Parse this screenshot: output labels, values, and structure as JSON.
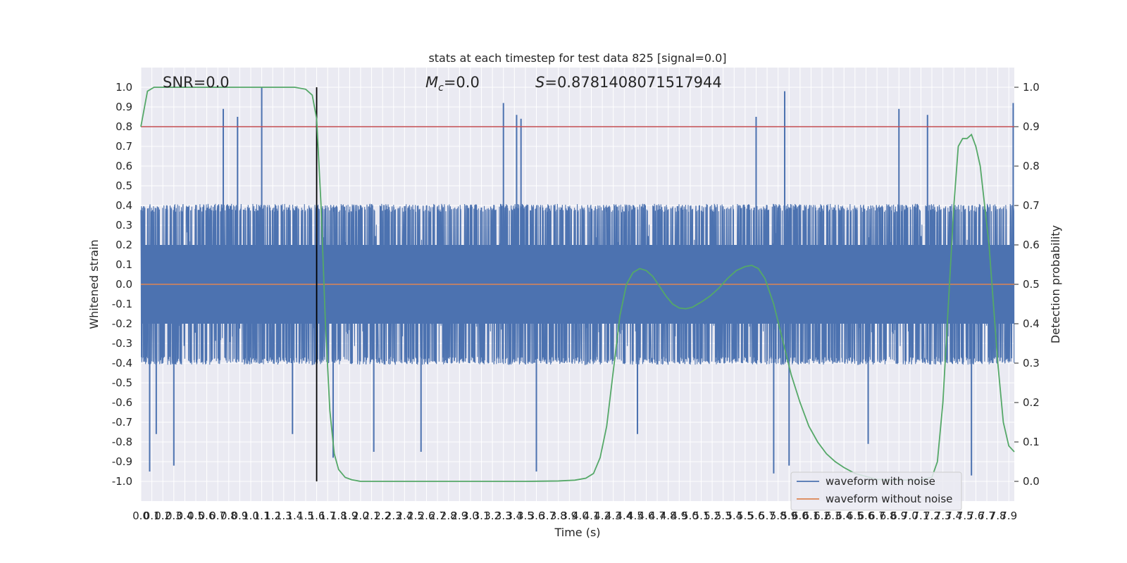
{
  "chart_data": {
    "type": "line",
    "title": "stats at each timestep for test data 825 [signal=0.0]",
    "xlabel": "Time (s)",
    "ylabel": "Whitened strain",
    "ylabel_right": "Detection probability",
    "xlim": [
      0.0,
      7.95
    ],
    "ylim": [
      -1.1,
      1.1
    ],
    "ylim_right": [
      -0.05,
      1.05
    ],
    "grid": true,
    "x_ticks": [
      "0.0",
      "0.1",
      "0.2",
      "0.3",
      "0.4",
      "0.5",
      "0.6",
      "0.7",
      "0.8",
      "0.9",
      "1.0",
      "1.1",
      "1.2",
      "1.3",
      "1.4",
      "1.5",
      "1.6",
      "1.7",
      "1.8",
      "1.9",
      "2.0",
      "2.1",
      "2.2",
      "2.3",
      "2.4",
      "2.5",
      "2.6",
      "2.7",
      "2.8",
      "2.9",
      "3.0",
      "3.1",
      "3.2",
      "3.3",
      "3.4",
      "3.5",
      "3.6",
      "3.7",
      "3.8",
      "3.9",
      "4.0",
      "4.1",
      "4.2",
      "4.3",
      "4.4",
      "4.5",
      "4.6",
      "4.7",
      "4.8",
      "4.9",
      "5.0",
      "5.1",
      "5.2",
      "5.3",
      "5.4",
      "5.5",
      "5.6",
      "5.7",
      "5.8",
      "5.9",
      "6.0",
      "6.1",
      "6.2",
      "6.3",
      "6.4",
      "6.5",
      "6.6",
      "6.7",
      "6.8",
      "6.9",
      "7.0",
      "7.1",
      "7.2",
      "7.3",
      "7.4",
      "7.5",
      "7.6",
      "7.7",
      "7.8",
      "7.9"
    ],
    "y_ticks_left": [
      "1.0",
      "0.9",
      "0.8",
      "0.7",
      "0.6",
      "0.5",
      "0.4",
      "0.3",
      "0.2",
      "0.1",
      "0.0",
      "-0.1",
      "-0.2",
      "-0.3",
      "-0.4",
      "-0.5",
      "-0.6",
      "-0.7",
      "-0.8",
      "-0.9",
      "-1.0"
    ],
    "y_ticks_right": [
      "1.0",
      "0.9",
      "0.8",
      "0.7",
      "0.6",
      "0.5",
      "0.4",
      "0.3",
      "0.2",
      "0.1",
      "0.0"
    ],
    "annotations": {
      "snr": "SNR=0.0",
      "mc": "=0.0",
      "mc_symbol": "M",
      "mc_sub": "c",
      "s": "=0.8781408071517944",
      "s_symbol": "S"
    },
    "legend": {
      "placement": "bottom-right",
      "entries": [
        {
          "label": "waveform with noise",
          "color": "#4c72b0"
        },
        {
          "label": "waveform without noise",
          "color": "#dd8452"
        }
      ]
    },
    "threshold": {
      "value": 0.9,
      "axis": "right",
      "color": "#c44e52"
    },
    "marker_time": 1.6,
    "series": [
      {
        "name": "waveform with noise",
        "axis": "left",
        "color": "#4c72b0",
        "kind": "noise",
        "samples": 4096,
        "core_amplitude": 0.4,
        "peaks": [
          {
            "x": 0.08,
            "y": -0.95
          },
          {
            "x": 0.14,
            "y": -0.76
          },
          {
            "x": 0.3,
            "y": -0.92
          },
          {
            "x": 0.75,
            "y": 0.89
          },
          {
            "x": 0.88,
            "y": 0.85
          },
          {
            "x": 1.1,
            "y": 1.0
          },
          {
            "x": 1.38,
            "y": -0.76
          },
          {
            "x": 1.75,
            "y": -0.88
          },
          {
            "x": 2.12,
            "y": -0.85
          },
          {
            "x": 2.55,
            "y": -0.85
          },
          {
            "x": 3.3,
            "y": 0.92
          },
          {
            "x": 3.42,
            "y": 0.86
          },
          {
            "x": 3.46,
            "y": 0.84
          },
          {
            "x": 3.6,
            "y": -0.95
          },
          {
            "x": 4.52,
            "y": -0.76
          },
          {
            "x": 5.6,
            "y": 0.85
          },
          {
            "x": 5.76,
            "y": -0.96
          },
          {
            "x": 5.86,
            "y": 0.98
          },
          {
            "x": 5.9,
            "y": -0.92
          },
          {
            "x": 6.9,
            "y": 0.89
          },
          {
            "x": 6.62,
            "y": -0.81
          },
          {
            "x": 7.16,
            "y": 0.86
          },
          {
            "x": 7.56,
            "y": -0.97
          },
          {
            "x": 7.94,
            "y": 0.92
          }
        ]
      },
      {
        "name": "waveform without noise",
        "axis": "left",
        "color": "#dd8452",
        "x": [
          0.0,
          7.95
        ],
        "y": [
          0.0,
          0.0
        ]
      },
      {
        "name": "detection probability",
        "axis": "right",
        "color": "#55a868",
        "x": [
          0.0,
          0.06,
          0.12,
          0.2,
          0.4,
          0.8,
          1.2,
          1.4,
          1.5,
          1.56,
          1.6,
          1.64,
          1.68,
          1.72,
          1.76,
          1.8,
          1.86,
          1.92,
          2.0,
          2.3,
          3.0,
          3.5,
          3.8,
          3.95,
          4.05,
          4.12,
          4.18,
          4.24,
          4.3,
          4.36,
          4.42,
          4.48,
          4.54,
          4.6,
          4.66,
          4.72,
          4.78,
          4.84,
          4.9,
          4.96,
          5.02,
          5.1,
          5.18,
          5.26,
          5.34,
          5.42,
          5.5,
          5.56,
          5.62,
          5.68,
          5.76,
          5.84,
          5.92,
          6.0,
          6.08,
          6.16,
          6.24,
          6.32,
          6.4,
          6.5,
          6.7,
          6.9,
          7.1,
          7.2,
          7.25,
          7.3,
          7.35,
          7.4,
          7.44,
          7.48,
          7.52,
          7.56,
          7.6,
          7.64,
          7.68,
          7.72,
          7.76,
          7.8,
          7.85,
          7.9,
          7.95
        ],
        "y": [
          0.9,
          0.99,
          1.0,
          1.0,
          1.0,
          1.0,
          1.0,
          1.0,
          0.995,
          0.98,
          0.92,
          0.7,
          0.4,
          0.18,
          0.07,
          0.03,
          0.01,
          0.004,
          0.0,
          0.0,
          0.0,
          0.0,
          0.001,
          0.003,
          0.008,
          0.02,
          0.06,
          0.14,
          0.28,
          0.42,
          0.5,
          0.53,
          0.54,
          0.535,
          0.52,
          0.495,
          0.47,
          0.45,
          0.44,
          0.438,
          0.442,
          0.455,
          0.47,
          0.49,
          0.515,
          0.535,
          0.545,
          0.548,
          0.54,
          0.515,
          0.45,
          0.36,
          0.27,
          0.2,
          0.14,
          0.1,
          0.07,
          0.05,
          0.035,
          0.02,
          0.005,
          0.003,
          0.004,
          0.01,
          0.05,
          0.2,
          0.45,
          0.7,
          0.85,
          0.87,
          0.87,
          0.88,
          0.85,
          0.8,
          0.7,
          0.6,
          0.45,
          0.3,
          0.15,
          0.09,
          0.075
        ]
      }
    ]
  }
}
